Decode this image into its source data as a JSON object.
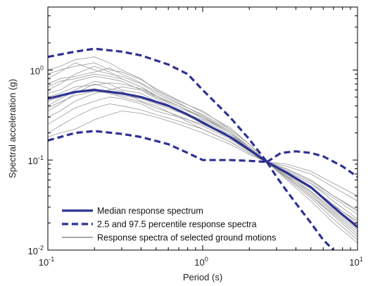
{
  "chart_data": {
    "type": "line",
    "xlabel": "Period (s)",
    "ylabel": "Spectral acceleration (g)",
    "x_scale": "log",
    "y_scale": "log",
    "xlim": [
      0.1,
      10
    ],
    "ylim": [
      0.01,
      5
    ],
    "grid": false,
    "legend_position": "bottom-left",
    "x_ticks": [
      {
        "base": "10",
        "exp": "-1"
      },
      {
        "base": "10",
        "exp": "0"
      },
      {
        "base": "10",
        "exp": "1"
      }
    ],
    "y_ticks": [
      {
        "base": "10",
        "exp": "-2"
      },
      {
        "base": "10",
        "exp": "-1"
      },
      {
        "base": "10",
        "exp": "0"
      }
    ],
    "colors": {
      "median": "#2e3192",
      "percentile": "#2e3192",
      "ground_motion": "#9a9a9a"
    },
    "series": [
      {
        "name": "Median response spectrum",
        "style": "solid-thick",
        "x": [
          0.1,
          0.15,
          0.2,
          0.3,
          0.4,
          0.6,
          0.8,
          1.0,
          1.5,
          2.0,
          2.6,
          3.5,
          5.0,
          7.0,
          10.0
        ],
        "y": [
          0.48,
          0.57,
          0.6,
          0.55,
          0.5,
          0.4,
          0.32,
          0.26,
          0.18,
          0.13,
          0.095,
          0.072,
          0.05,
          0.03,
          0.018
        ]
      },
      {
        "name": "2.5 and 97.5 percentile response spectra",
        "style": "dashed-thick",
        "x": [
          0.1,
          0.15,
          0.2,
          0.3,
          0.4,
          0.6,
          0.8,
          1.0,
          1.5,
          2.0,
          2.6
        ],
        "y": [
          1.4,
          1.6,
          1.72,
          1.6,
          1.45,
          1.15,
          0.9,
          0.6,
          0.3,
          0.17,
          0.095
        ]
      },
      {
        "name": "",
        "style": "dashed-thick",
        "x": [
          2.6,
          3.2,
          4.0,
          5.0,
          6.0,
          8.0,
          10.0
        ],
        "y": [
          0.095,
          0.12,
          0.125,
          0.12,
          0.11,
          0.085,
          0.065
        ]
      },
      {
        "name": "",
        "style": "dashed-thick",
        "x": [
          0.1,
          0.15,
          0.2,
          0.3,
          0.4,
          0.6,
          0.8,
          1.0,
          1.5,
          2.0,
          2.6
        ],
        "y": [
          0.165,
          0.2,
          0.21,
          0.195,
          0.18,
          0.15,
          0.12,
          0.1,
          0.1,
          0.098,
          0.095
        ]
      },
      {
        "name": "",
        "style": "dashed-thick",
        "x": [
          2.6,
          3.0,
          3.5,
          4.0,
          5.0,
          6.0,
          7.0
        ],
        "y": [
          0.095,
          0.065,
          0.045,
          0.033,
          0.02,
          0.013,
          0.01
        ]
      }
    ],
    "ground_motions_legend": "Response spectra of selected ground motions",
    "ground_motions": [
      {
        "x": [
          0.1,
          0.12,
          0.15,
          0.2,
          0.25,
          0.3,
          0.4,
          0.5,
          0.7,
          1.0,
          1.5,
          2.0,
          2.6,
          3.5,
          5.0,
          7.0,
          10.0
        ],
        "y": [
          0.35,
          0.42,
          0.55,
          0.7,
          0.62,
          0.58,
          0.45,
          0.4,
          0.3,
          0.22,
          0.16,
          0.12,
          0.095,
          0.07,
          0.045,
          0.028,
          0.018
        ]
      },
      {
        "x": [
          0.1,
          0.12,
          0.15,
          0.2,
          0.25,
          0.3,
          0.4,
          0.5,
          0.7,
          1.0,
          1.5,
          2.0,
          2.6,
          3.5,
          5.0,
          7.0,
          10.0
        ],
        "y": [
          0.6,
          0.7,
          0.9,
          1.1,
          0.95,
          0.8,
          0.65,
          0.5,
          0.38,
          0.3,
          0.2,
          0.14,
          0.095,
          0.075,
          0.055,
          0.035,
          0.022
        ]
      },
      {
        "x": [
          0.1,
          0.12,
          0.15,
          0.2,
          0.25,
          0.3,
          0.4,
          0.5,
          0.7,
          1.0,
          1.5,
          2.0,
          2.6,
          3.5,
          5.0,
          7.0,
          10.0
        ],
        "y": [
          0.25,
          0.3,
          0.38,
          0.45,
          0.5,
          0.48,
          0.42,
          0.35,
          0.3,
          0.25,
          0.18,
          0.13,
          0.095,
          0.08,
          0.06,
          0.04,
          0.028
        ]
      },
      {
        "x": [
          0.1,
          0.12,
          0.15,
          0.2,
          0.25,
          0.3,
          0.4,
          0.5,
          0.7,
          1.0,
          1.5,
          2.0,
          2.6,
          3.5,
          5.0,
          7.0,
          10.0
        ],
        "y": [
          0.8,
          0.95,
          1.2,
          1.0,
          0.9,
          0.85,
          0.7,
          0.55,
          0.42,
          0.32,
          0.22,
          0.15,
          0.095,
          0.065,
          0.04,
          0.025,
          0.015
        ]
      },
      {
        "x": [
          0.1,
          0.12,
          0.15,
          0.2,
          0.25,
          0.3,
          0.4,
          0.5,
          0.7,
          1.0,
          1.5,
          2.0,
          2.6,
          3.5,
          5.0,
          7.0,
          10.0
        ],
        "y": [
          0.45,
          0.5,
          0.6,
          0.75,
          0.7,
          0.6,
          0.55,
          0.45,
          0.35,
          0.28,
          0.19,
          0.13,
          0.095,
          0.07,
          0.05,
          0.032,
          0.02
        ]
      },
      {
        "x": [
          0.1,
          0.12,
          0.15,
          0.2,
          0.25,
          0.3,
          0.4,
          0.5,
          0.7,
          1.0,
          1.5,
          2.0,
          2.6,
          3.5,
          5.0,
          7.0,
          10.0
        ],
        "y": [
          0.3,
          0.35,
          0.45,
          0.55,
          0.6,
          0.65,
          0.6,
          0.5,
          0.4,
          0.3,
          0.2,
          0.13,
          0.095,
          0.075,
          0.055,
          0.038,
          0.025
        ]
      },
      {
        "x": [
          0.1,
          0.12,
          0.15,
          0.2,
          0.25,
          0.3,
          0.4,
          0.5,
          0.7,
          1.0,
          1.5,
          2.0,
          2.6,
          3.5,
          5.0,
          7.0,
          10.0
        ],
        "y": [
          1.0,
          1.1,
          1.3,
          1.4,
          1.2,
          1.0,
          0.8,
          0.6,
          0.45,
          0.35,
          0.22,
          0.15,
          0.095,
          0.06,
          0.035,
          0.02,
          0.012
        ]
      },
      {
        "x": [
          0.1,
          0.12,
          0.15,
          0.2,
          0.25,
          0.3,
          0.4,
          0.5,
          0.7,
          1.0,
          1.5,
          2.0,
          2.6,
          3.5,
          5.0,
          7.0,
          10.0
        ],
        "y": [
          0.2,
          0.24,
          0.3,
          0.38,
          0.42,
          0.4,
          0.36,
          0.32,
          0.27,
          0.22,
          0.16,
          0.12,
          0.095,
          0.085,
          0.07,
          0.05,
          0.035
        ]
      },
      {
        "x": [
          0.1,
          0.12,
          0.15,
          0.2,
          0.25,
          0.3,
          0.4,
          0.5,
          0.7,
          1.0,
          1.5,
          2.0,
          2.6,
          3.5,
          5.0,
          7.0,
          10.0
        ],
        "y": [
          0.55,
          0.6,
          0.75,
          0.85,
          0.8,
          0.75,
          0.6,
          0.48,
          0.36,
          0.27,
          0.18,
          0.125,
          0.095,
          0.068,
          0.042,
          0.026,
          0.016
        ]
      },
      {
        "x": [
          0.1,
          0.12,
          0.15,
          0.2,
          0.25,
          0.3,
          0.4,
          0.5,
          0.7,
          1.0,
          1.5,
          2.0,
          2.6,
          3.5,
          5.0,
          7.0,
          10.0
        ],
        "y": [
          0.4,
          0.48,
          0.58,
          0.62,
          0.56,
          0.52,
          0.48,
          0.42,
          0.34,
          0.26,
          0.19,
          0.135,
          0.095,
          0.072,
          0.05,
          0.03,
          0.019
        ]
      },
      {
        "x": [
          0.1,
          0.12,
          0.15,
          0.2,
          0.25,
          0.3,
          0.4,
          0.5,
          0.7,
          1.0,
          1.5,
          2.0,
          2.6,
          3.5,
          5.0,
          7.0,
          10.0
        ],
        "y": [
          0.7,
          0.8,
          0.85,
          0.95,
          1.05,
          0.9,
          0.72,
          0.58,
          0.43,
          0.31,
          0.21,
          0.14,
          0.095,
          0.066,
          0.044,
          0.027,
          0.017
        ]
      },
      {
        "x": [
          0.1,
          0.12,
          0.15,
          0.2,
          0.25,
          0.3,
          0.4,
          0.5,
          0.7,
          1.0,
          1.5,
          2.0,
          2.6,
          3.5,
          5.0,
          7.0,
          10.0
        ],
        "y": [
          0.5,
          0.55,
          0.65,
          0.68,
          0.72,
          0.7,
          0.62,
          0.52,
          0.4,
          0.3,
          0.21,
          0.14,
          0.095,
          0.07,
          0.048,
          0.031,
          0.021
        ]
      },
      {
        "x": [
          0.1,
          0.12,
          0.15,
          0.2,
          0.25,
          0.3,
          0.4,
          0.5,
          0.7,
          1.0,
          1.5,
          2.0,
          2.6,
          3.5,
          5.0,
          7.0,
          10.0
        ],
        "y": [
          0.18,
          0.2,
          0.22,
          0.28,
          0.32,
          0.35,
          0.33,
          0.3,
          0.25,
          0.2,
          0.15,
          0.115,
          0.095,
          0.09,
          0.075,
          0.055,
          0.04
        ]
      },
      {
        "x": [
          0.1,
          0.12,
          0.15,
          0.2,
          0.25,
          0.3,
          0.4,
          0.5,
          0.7,
          1.0,
          1.5,
          2.0,
          2.6,
          3.5,
          5.0,
          7.0,
          10.0
        ],
        "y": [
          0.65,
          0.75,
          0.8,
          0.9,
          0.85,
          0.8,
          0.65,
          0.52,
          0.4,
          0.29,
          0.2,
          0.135,
          0.095,
          0.062,
          0.038,
          0.022,
          0.013
        ]
      },
      {
        "x": [
          0.1,
          0.12,
          0.15,
          0.2,
          0.25,
          0.3,
          0.4,
          0.5,
          0.7,
          1.0,
          1.5,
          2.0,
          2.6,
          3.5,
          5.0,
          7.0,
          10.0
        ],
        "y": [
          0.38,
          0.44,
          0.52,
          0.58,
          0.55,
          0.5,
          0.44,
          0.38,
          0.31,
          0.24,
          0.17,
          0.125,
          0.095,
          0.078,
          0.058,
          0.04,
          0.027
        ]
      },
      {
        "x": [
          0.1,
          0.12,
          0.15,
          0.2,
          0.25,
          0.3,
          0.4,
          0.5,
          0.7,
          1.0,
          1.5,
          2.0,
          2.6,
          3.5,
          5.0,
          7.0,
          10.0
        ],
        "y": [
          0.9,
          1.0,
          1.1,
          1.2,
          1.0,
          0.95,
          0.78,
          0.62,
          0.46,
          0.34,
          0.23,
          0.15,
          0.095,
          0.064,
          0.04,
          0.024,
          0.014
        ]
      }
    ]
  }
}
